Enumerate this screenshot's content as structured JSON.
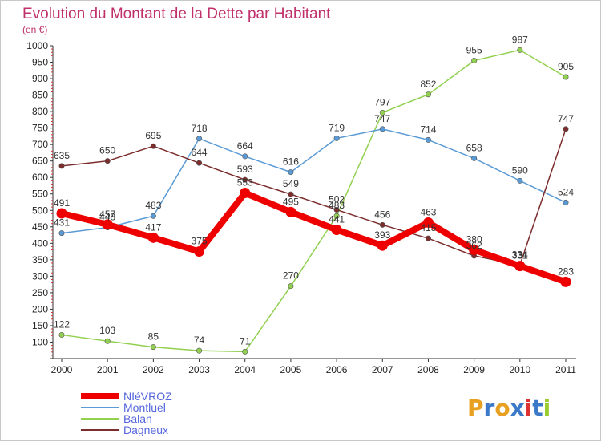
{
  "chart_data": {
    "type": "line",
    "title": "Evolution du Montant de la Dette par Habitant",
    "ylabel": "(en €)",
    "xlabel": "",
    "ylim": [
      50,
      1000
    ],
    "yticks": [
      100,
      150,
      200,
      250,
      300,
      350,
      400,
      450,
      500,
      550,
      600,
      650,
      700,
      750,
      800,
      850,
      900,
      950,
      1000
    ],
    "categories": [
      "2000",
      "2001",
      "2002",
      "2003",
      "2004",
      "2005",
      "2006",
      "2007",
      "2008",
      "2009",
      "2010",
      "2011"
    ],
    "grid": false,
    "legend_position": "bottom-left",
    "series": [
      {
        "name": "NIéVROZ",
        "color": "#ee0000",
        "values": [
          491,
          457,
          417,
          375,
          553,
          495,
          441,
          393,
          463,
          380,
          331,
          283
        ]
      },
      {
        "name": "Montluel",
        "color": "#5b9bd5",
        "values": [
          431,
          448,
          483,
          718,
          664,
          616,
          719,
          747,
          714,
          658,
          590,
          524
        ]
      },
      {
        "name": "Balan",
        "color": "#92d050",
        "values": [
          122,
          103,
          85,
          74,
          71,
          270,
          483,
          797,
          852,
          955,
          987,
          905
        ]
      },
      {
        "name": "Dagneux",
        "color": "#7b2c2c",
        "values": [
          635,
          650,
          695,
          644,
          593,
          549,
          502,
          456,
          415,
          362,
          334,
          747
        ]
      }
    ]
  },
  "legend": {
    "label_color": "#5566dd"
  },
  "logo": {
    "text": "Proxiti",
    "colors": [
      "#e8a020",
      "#3a78c8",
      "#e8a020",
      "#3a78c8",
      "#d33",
      "#3a78c8",
      "#9acd32"
    ]
  }
}
